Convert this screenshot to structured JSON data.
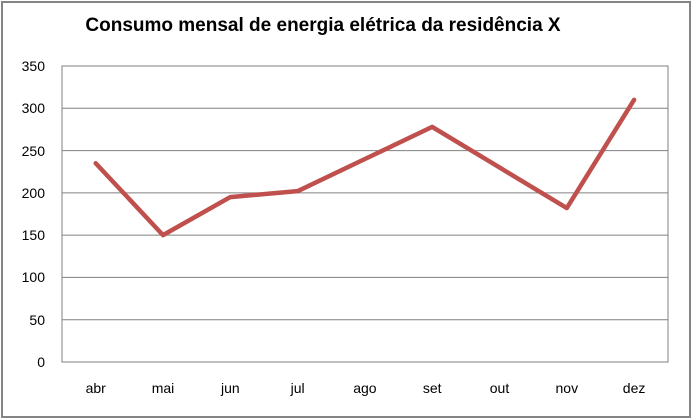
{
  "chart_data": {
    "type": "line",
    "title": "Consumo mensal de energia elétrica da residência X",
    "categories": [
      "abr",
      "mai",
      "jun",
      "jul",
      "ago",
      "set",
      "out",
      "nov",
      "dez"
    ],
    "values": [
      235,
      150,
      195,
      202,
      240,
      278,
      230,
      182,
      310
    ],
    "xlabel": "",
    "ylabel": "",
    "ylim": [
      0,
      350
    ],
    "yticks": [
      0,
      50,
      100,
      150,
      200,
      250,
      300,
      350
    ],
    "grid": true,
    "legend": "none",
    "colors": {
      "line": "#C0504D",
      "grid": "#808080",
      "text": "#000000",
      "frame_border": "#848484",
      "background": "#FFFFFF"
    }
  }
}
